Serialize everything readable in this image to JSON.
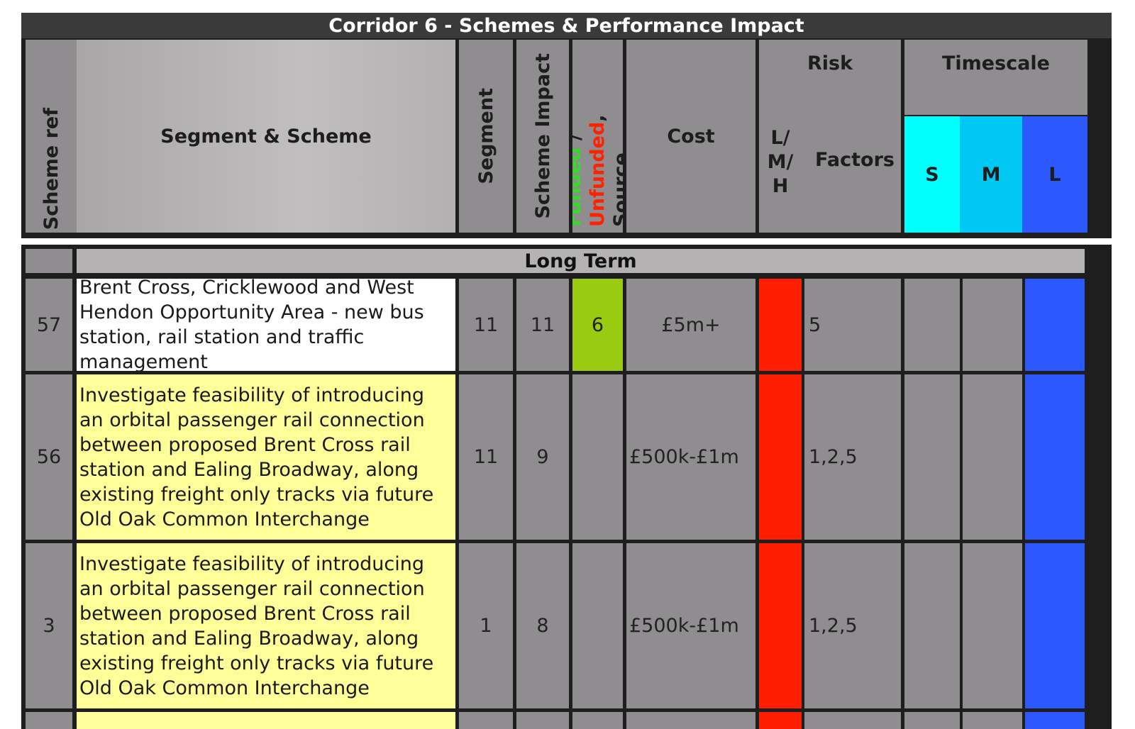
{
  "header": {
    "title": "Corridor 6 - Schemes & Performance Impact",
    "scheme_ref": "Scheme ref",
    "segment_scheme": "Segment & Scheme",
    "segment": "Segment",
    "scheme_impact": "Scheme Impact",
    "funded": "Funded",
    "slash": " / ",
    "unfunded": "Unfunded",
    "source": ", Source",
    "cost": "Cost",
    "risk": "Risk",
    "lmh": "L/ M/ H",
    "factors": "Factors",
    "timescale": "Timescale",
    "ts_s": "S",
    "ts_m": "M",
    "ts_l": "L"
  },
  "section_label": "Long Term",
  "rows": [
    {
      "ref": "57",
      "scheme": "Brent Cross, Cricklewood and West Hendon Opportunity Area - new bus station, rail station and traffic management",
      "segment": "11",
      "impact": "11",
      "funding": "6",
      "cost": "£5m+",
      "factors": "5"
    },
    {
      "ref": "56",
      "scheme": "Investigate feasibility of introducing an orbital passenger rail connection between proposed Brent Cross rail station and Ealing Broadway, along existing freight only tracks via future Old Oak Common Interchange",
      "segment": "11",
      "impact": "9",
      "funding": "",
      "cost": "£500k-£1m",
      "factors": "1,2,5"
    },
    {
      "ref": "3",
      "scheme": "Investigate feasibility of introducing an orbital passenger rail connection between proposed Brent Cross rail station and Ealing Broadway, along existing freight only tracks via future Old Oak Common Interchange",
      "segment": "1",
      "impact": "8",
      "funding": "",
      "cost": "£500k-£1m",
      "factors": "1,2,5"
    }
  ],
  "colors": {
    "risk_high": "#ff1e00",
    "timescale_short": "#00ffff",
    "timescale_medium": "#00c8f4",
    "timescale_long": "#2b59ff",
    "funded_green": "#99cc11",
    "scheme_highlight": "#ffff99",
    "scheme_plain": "#ffffff"
  }
}
